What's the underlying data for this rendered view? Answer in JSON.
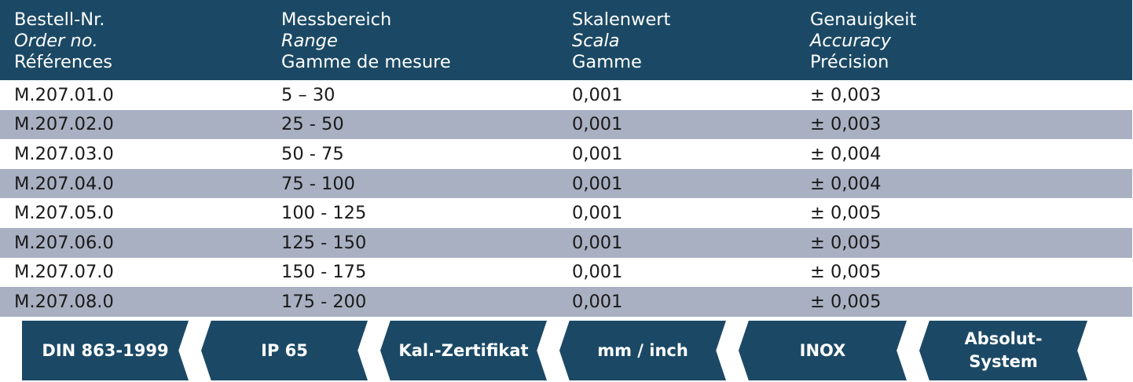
{
  "header": {
    "col1": {
      "de": "Bestell-Nr.",
      "en": "Order no.",
      "fr": "Références"
    },
    "col2": {
      "de": "Messbereich",
      "en": "Range",
      "fr": "Gamme de mesure"
    },
    "col3": {
      "de": "Skalenwert",
      "en": "Scala",
      "fr": "Gamme"
    },
    "col4": {
      "de": "Genauigkeit",
      "en": "Accuracy",
      "fr": "Précision"
    }
  },
  "rows": [
    {
      "order": "M.207.01.0",
      "range": "5 – 30",
      "scale": "0,001",
      "accuracy": "± 0,003"
    },
    {
      "order": "M.207.02.0",
      "range": "25 - 50",
      "scale": "0,001",
      "accuracy": "± 0,003"
    },
    {
      "order": "M.207.03.0",
      "range": "50 - 75",
      "scale": "0,001",
      "accuracy": "± 0,004"
    },
    {
      "order": "M.207.04.0",
      "range": "75 - 100",
      "scale": "0,001",
      "accuracy": "± 0,004"
    },
    {
      "order": "M.207.05.0",
      "range": "100 - 125",
      "scale": "0,001",
      "accuracy": "± 0,005"
    },
    {
      "order": "M.207.06.0",
      "range": "125 - 150",
      "scale": "0,001",
      "accuracy": "± 0,005"
    },
    {
      "order": "M.207.07.0",
      "range": "150 - 175",
      "scale": "0,001",
      "accuracy": "± 0,005"
    },
    {
      "order": "M.207.08.0",
      "range": "175 - 200",
      "scale": "0,001",
      "accuracy": "± 0,005"
    }
  ],
  "features": [
    "DIN 863-1999",
    "IP 65",
    "Kal.-Zertifikat",
    "mm / inch",
    "INOX",
    "Absolut-\nSystem"
  ],
  "colors": {
    "header_bg": "#1b4965",
    "alt_row_bg": "#a9b0c2",
    "badge_bg": "#1b4965"
  }
}
